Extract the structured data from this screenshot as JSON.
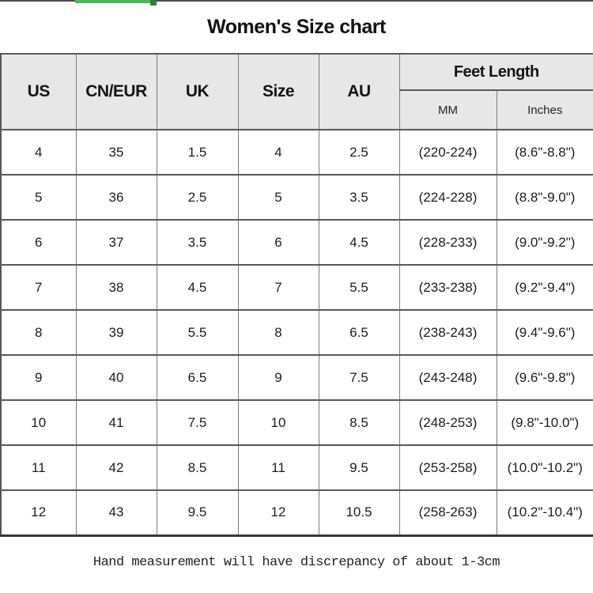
{
  "top_bar": {
    "track_color": "#4a4a4a",
    "progress_color": "#55b258",
    "handle_color": "#2f8033"
  },
  "header_bg_color": "#e7e7e7",
  "footnote": "Hand measurement will have discrepancy of about 1-3cm",
  "chart_data": {
    "type": "table",
    "title": "Women's Size chart",
    "columns": [
      "US",
      "CN/EUR",
      "UK",
      "Size",
      "AU"
    ],
    "column_group": {
      "label": "Feet Length",
      "sub_columns": [
        "MM",
        "Inches"
      ]
    },
    "rows": [
      [
        "4",
        "35",
        "1.5",
        "4",
        "2.5",
        "(220-224)",
        "(8.6\"-8.8\")"
      ],
      [
        "5",
        "36",
        "2.5",
        "5",
        "3.5",
        "(224-228)",
        "(8.8\"-9.0\")"
      ],
      [
        "6",
        "37",
        "3.5",
        "6",
        "4.5",
        "(228-233)",
        "(9.0\"-9.2\")"
      ],
      [
        "7",
        "38",
        "4.5",
        "7",
        "5.5",
        "(233-238)",
        "(9.2\"-9.4\")"
      ],
      [
        "8",
        "39",
        "5.5",
        "8",
        "6.5",
        "(238-243)",
        "(9.4\"-9.6\")"
      ],
      [
        "9",
        "40",
        "6.5",
        "9",
        "7.5",
        "(243-248)",
        "(9.6\"-9.8\")"
      ],
      [
        "10",
        "41",
        "7.5",
        "10",
        "8.5",
        "(248-253)",
        "(9.8\"-10.0\")"
      ],
      [
        "11",
        "42",
        "8.5",
        "11",
        "9.5",
        "(253-258)",
        "(10.0\"-10.2\")"
      ],
      [
        "12",
        "43",
        "9.5",
        "12",
        "10.5",
        "(258-263)",
        "(10.2\"-10.4\")"
      ]
    ]
  }
}
